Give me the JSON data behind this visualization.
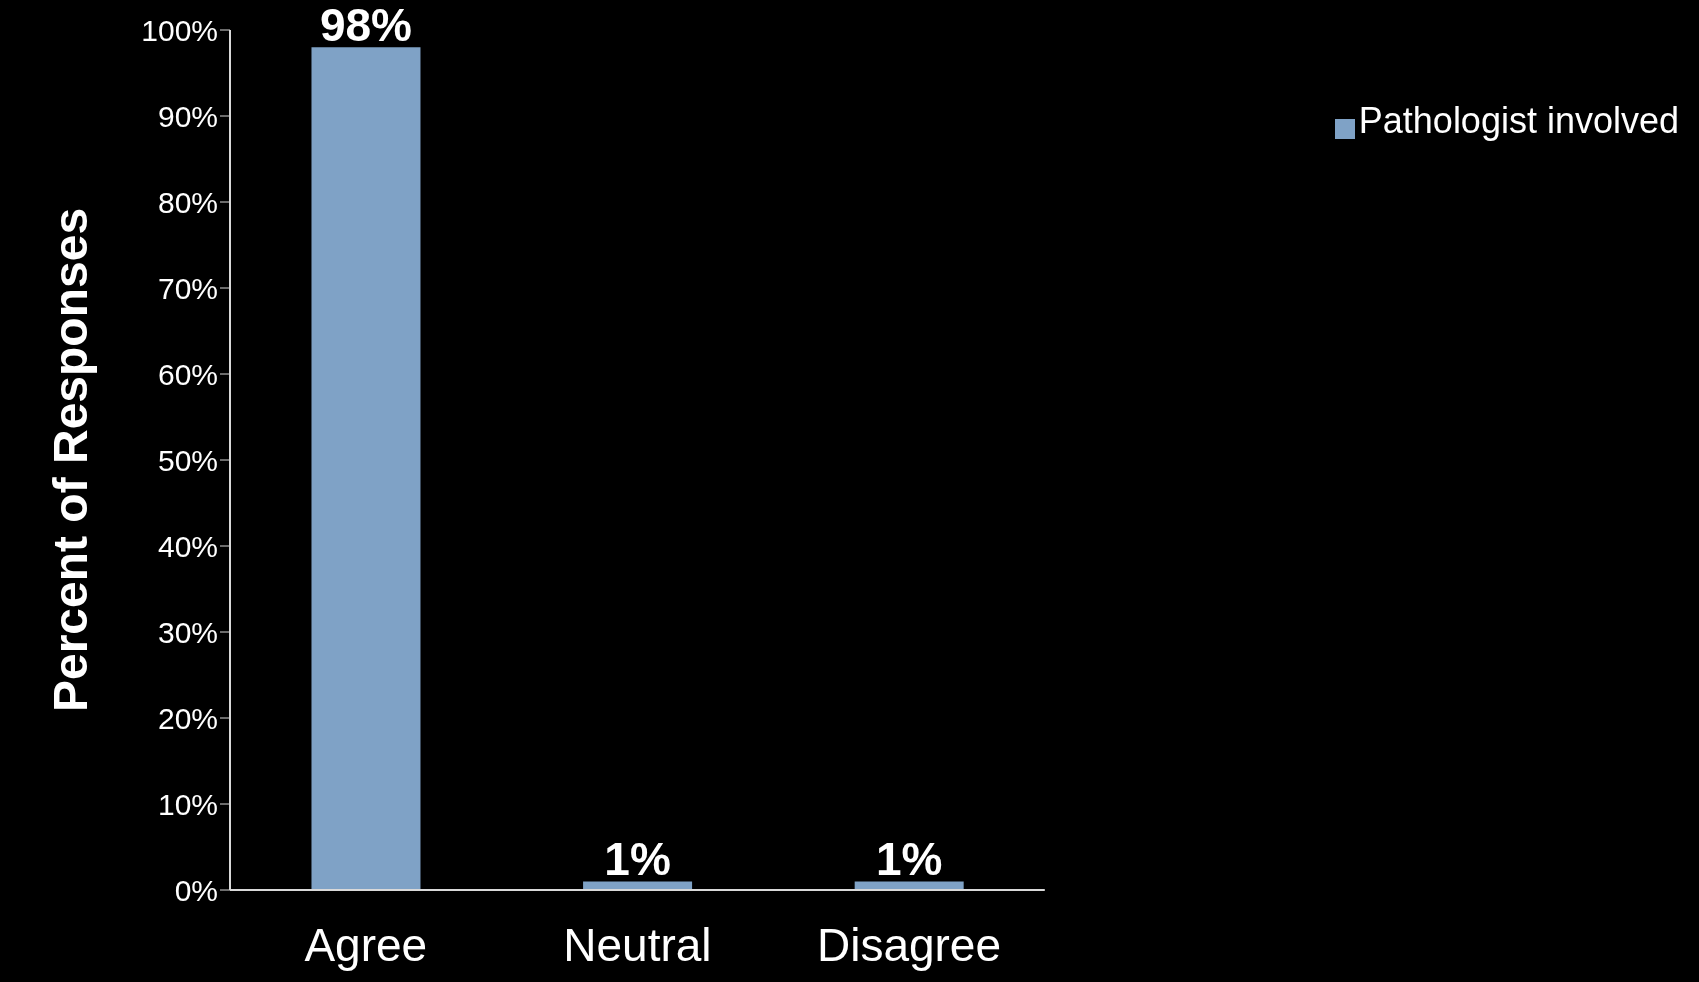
{
  "chart_data": {
    "type": "bar",
    "ylabel": "Percent of Responses",
    "categories": [
      "Agree",
      "Neutral",
      "Disagree"
    ],
    "series": [
      {
        "name": "Pathologist involved",
        "color": "#7fa2c6",
        "values": [
          98,
          1,
          1
        ],
        "value_labels": [
          "98%",
          "1%",
          "1%"
        ]
      }
    ],
    "ylim": [
      0,
      100
    ],
    "yticks": [
      {
        "value": 0,
        "label": "0%"
      },
      {
        "value": 10,
        "label": "10%"
      },
      {
        "value": 20,
        "label": "20%"
      },
      {
        "value": 30,
        "label": "30%"
      },
      {
        "value": 40,
        "label": "40%"
      },
      {
        "value": 50,
        "label": "50%"
      },
      {
        "value": 60,
        "label": "60%"
      },
      {
        "value": 70,
        "label": "70%"
      },
      {
        "value": 80,
        "label": "80%"
      },
      {
        "value": 90,
        "label": "90%"
      },
      {
        "value": 100,
        "label": "100%"
      }
    ],
    "grid": false,
    "legend": "top right"
  }
}
